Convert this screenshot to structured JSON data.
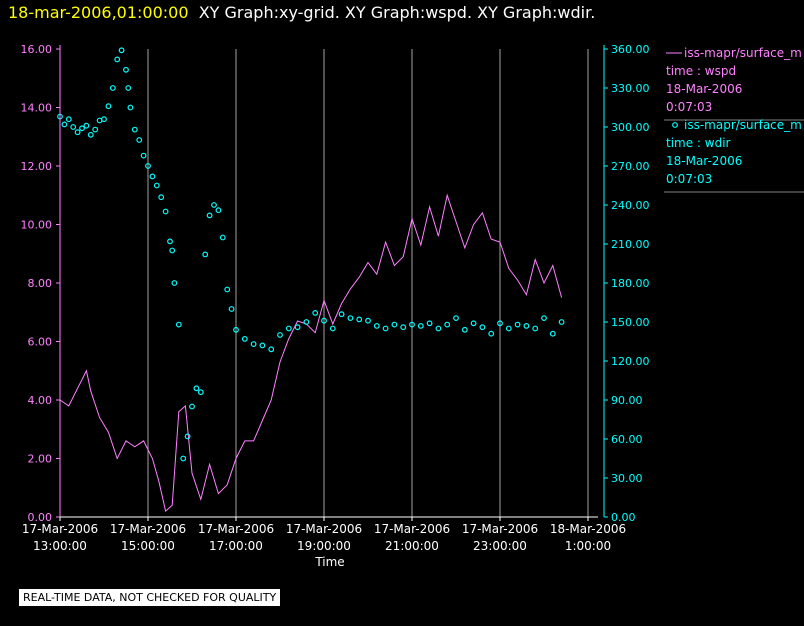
{
  "header": {
    "datetime": "18-mar-2006,01:00:00",
    "graphs": "XY Graph:xy-grid.  XY Graph:wspd.  XY Graph:wdir."
  },
  "colors": {
    "wspd": "#ff80ff",
    "wdir": "#00ffff",
    "grid": "#cccccc",
    "axis": "#ffffff",
    "title_date": "#ffff00"
  },
  "legend": [
    {
      "marker": "line",
      "series": "iss-mapr/surface_m",
      "var": "time : wspd",
      "date": "18-Mar-2006",
      "time": "0:07:03"
    },
    {
      "marker": "circle",
      "series": "iss-mapr/surface_m",
      "var": "time : wdir",
      "date": "18-Mar-2006",
      "time": "0:07:03"
    }
  ],
  "footer": {
    "quality_notice": "REAL-TIME DATA, NOT CHECKED FOR QUALITY"
  },
  "chart_data": {
    "type": "line",
    "title": "XY Graph:wspd / wdir",
    "xlabel": "Time",
    "x_unit": "hours since 17-Mar-2006 00:00",
    "xlim": [
      13,
      25
    ],
    "x_ticks": [
      {
        "h": 13,
        "date": "17-Mar-2006",
        "time": "13:00:00"
      },
      {
        "h": 15,
        "date": "17-Mar-2006",
        "time": "15:00:00"
      },
      {
        "h": 17,
        "date": "17-Mar-2006",
        "time": "17:00:00"
      },
      {
        "h": 19,
        "date": "17-Mar-2006",
        "time": "19:00:00"
      },
      {
        "h": 21,
        "date": "17-Mar-2006",
        "time": "21:00:00"
      },
      {
        "h": 23,
        "date": "17-Mar-2006",
        "time": "23:00:00"
      },
      {
        "h": 25,
        "date": "18-Mar-2006",
        "time": "1:00:00"
      }
    ],
    "left_axis": {
      "series": "wspd",
      "ylim": [
        0,
        16
      ],
      "ticks": [
        "0.00",
        "2.00",
        "4.00",
        "6.00",
        "8.00",
        "10.00",
        "12.00",
        "14.00",
        "16.00"
      ]
    },
    "right_axis": {
      "series": "wdir",
      "ylim": [
        0,
        360
      ],
      "ticks": [
        "0.00",
        "30.00",
        "60.00",
        "90.00",
        "120.00",
        "150.00",
        "180.00",
        "210.00",
        "240.00",
        "270.00",
        "300.00",
        "330.00",
        "360.00"
      ]
    },
    "series": [
      {
        "name": "wspd",
        "axis": "left",
        "style": "line",
        "x": [
          13.0,
          13.2,
          13.4,
          13.6,
          13.7,
          13.9,
          14.1,
          14.3,
          14.5,
          14.7,
          14.9,
          15.1,
          15.25,
          15.4,
          15.55,
          15.7,
          15.85,
          16.0,
          16.2,
          16.4,
          16.6,
          16.8,
          17.0,
          17.2,
          17.4,
          17.6,
          17.8,
          18.0,
          18.2,
          18.4,
          18.6,
          18.8,
          19.0,
          19.2,
          19.4,
          19.6,
          19.8,
          20.0,
          20.2,
          20.4,
          20.6,
          20.8,
          21.0,
          21.2,
          21.4,
          21.6,
          21.8,
          22.0,
          22.2,
          22.4,
          22.6,
          22.8,
          23.0,
          23.2,
          23.4,
          23.6,
          23.8,
          24.0,
          24.2,
          24.4
        ],
        "values": [
          4.0,
          3.8,
          4.4,
          5.0,
          4.3,
          3.4,
          2.9,
          2.0,
          2.6,
          2.4,
          2.6,
          2.0,
          1.2,
          0.2,
          0.4,
          3.6,
          3.8,
          1.5,
          0.6,
          1.8,
          0.8,
          1.1,
          2.0,
          2.6,
          2.6,
          3.3,
          4.0,
          5.3,
          6.1,
          6.7,
          6.6,
          6.3,
          7.4,
          6.6,
          7.3,
          7.8,
          8.2,
          8.7,
          8.3,
          9.4,
          8.6,
          8.9,
          10.2,
          9.3,
          10.6,
          9.6,
          11.0,
          10.1,
          9.2,
          10.0,
          10.4,
          9.5,
          9.4,
          8.5,
          8.1,
          7.6,
          8.8,
          8.0,
          8.6,
          7.5
        ]
      },
      {
        "name": "wdir",
        "axis": "right",
        "style": "circle",
        "x": [
          13.0,
          13.1,
          13.2,
          13.3,
          13.4,
          13.5,
          13.6,
          13.7,
          13.8,
          13.9,
          14.0,
          14.1,
          14.2,
          14.3,
          14.4,
          14.5,
          14.55,
          14.6,
          14.7,
          14.8,
          14.9,
          15.0,
          15.1,
          15.2,
          15.3,
          15.4,
          15.5,
          15.55,
          15.6,
          15.7,
          15.8,
          15.9,
          16.0,
          16.1,
          16.2,
          16.3,
          16.4,
          16.5,
          16.6,
          16.7,
          16.8,
          16.9,
          17.0,
          17.2,
          17.4,
          17.6,
          17.8,
          18.0,
          18.2,
          18.4,
          18.6,
          18.8,
          19.0,
          19.2,
          19.4,
          19.6,
          19.8,
          20.0,
          20.2,
          20.4,
          20.6,
          20.8,
          21.0,
          21.2,
          21.4,
          21.6,
          21.8,
          22.0,
          22.2,
          22.4,
          22.6,
          22.8,
          23.0,
          23.2,
          23.4,
          23.6,
          23.8,
          24.0,
          24.2,
          24.4
        ],
        "values": [
          308,
          302,
          306,
          300,
          296,
          299,
          301,
          294,
          298,
          305,
          306,
          316,
          330,
          352,
          359,
          344,
          330,
          315,
          298,
          290,
          278,
          270,
          262,
          255,
          246,
          235,
          212,
          205,
          180,
          148,
          45,
          62,
          85,
          99,
          96,
          202,
          232,
          240,
          236,
          215,
          175,
          160,
          144,
          137,
          133,
          132,
          129,
          140,
          145,
          146,
          150,
          157,
          151,
          145,
          156,
          153,
          152,
          151,
          147,
          145,
          148,
          146,
          148,
          147,
          149,
          145,
          148,
          153,
          144,
          149,
          146,
          141,
          149,
          145,
          148,
          147,
          145,
          153,
          141,
          150
        ]
      }
    ]
  }
}
